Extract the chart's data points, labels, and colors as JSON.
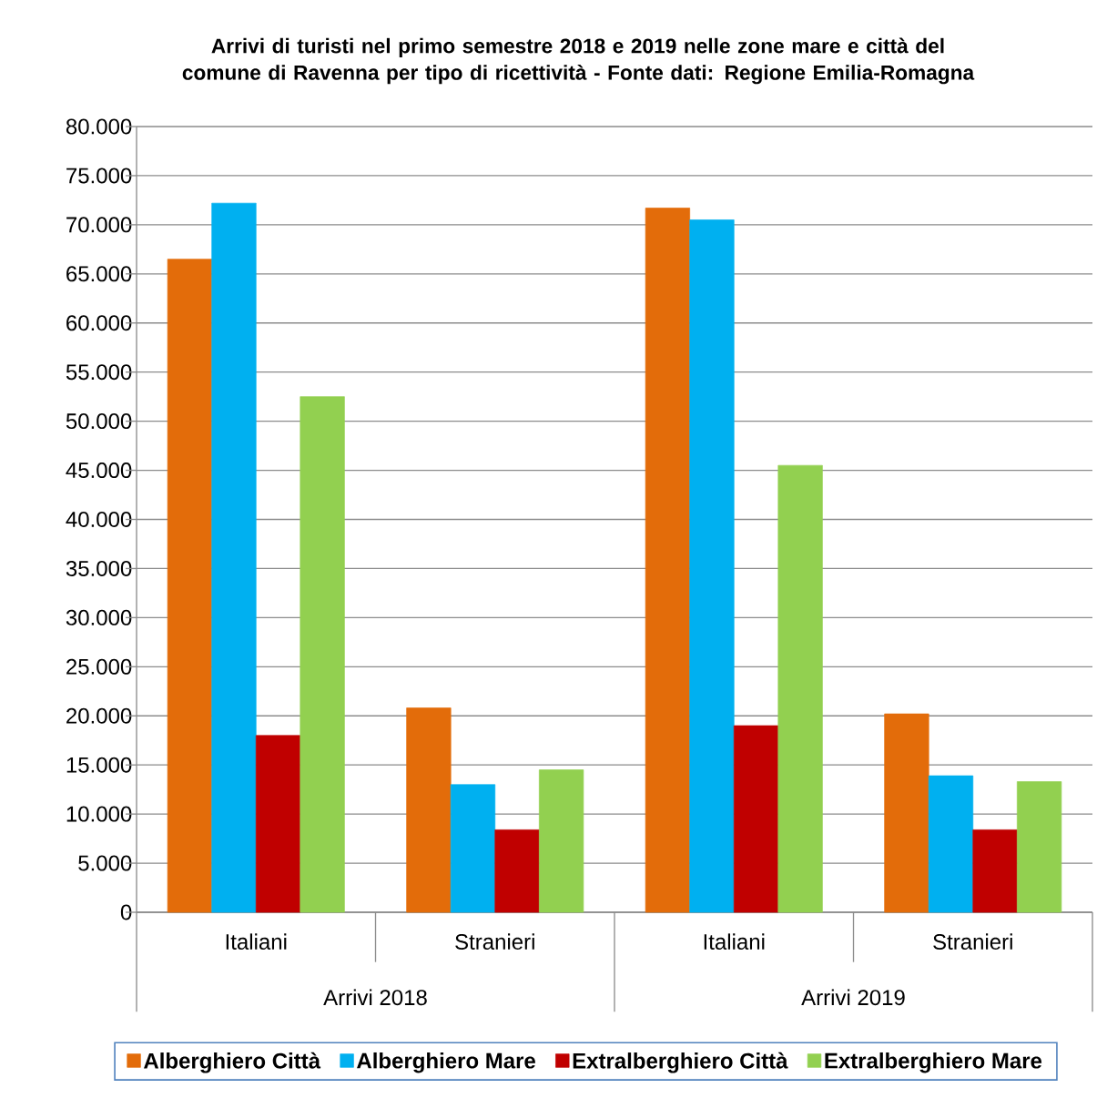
{
  "chart_data": {
    "type": "bar",
    "title": "Arrivi  di turisti nel primo semestre 2018  e 2019  nelle zone mare e città del comune di Ravenna per tipo di ricettività - Fonte dati: Regione Emilia-Romagna",
    "categories": [
      "Italiani",
      "Stranieri",
      "Italiani",
      "Stranieri"
    ],
    "annotations": [
      "Arrivi 2018",
      "Arrivi 2019"
    ],
    "series": [
      {
        "name": "Alberghiero Città",
        "color": "#e36c0a",
        "values": [
          66500,
          20800,
          71700,
          20200
        ]
      },
      {
        "name": "Alberghiero Mare",
        "color": "#00b0f0",
        "values": [
          72200,
          13000,
          70500,
          13900
        ]
      },
      {
        "name": "Extralberghiero Città",
        "color": "#c00000",
        "values": [
          18000,
          8400,
          19000,
          8400
        ]
      },
      {
        "name": "Extralberghiero Mare",
        "color": "#92d050",
        "values": [
          52500,
          14500,
          45500,
          13300
        ]
      }
    ],
    "ylim": [
      0,
      80000
    ],
    "yticks": [
      0,
      {
        "value": 5000,
        "label": "5.000"
      },
      {
        "value": 10000,
        "label": "10.000"
      },
      {
        "value": 15000,
        "label": "15.000"
      },
      {
        "value": 20000,
        "label": "20.000"
      },
      {
        "value": 25000,
        "label": "25.000"
      },
      {
        "value": 30000,
        "label": "30.000"
      },
      {
        "value": 35000,
        "label": "35.000"
      },
      {
        "value": 40000,
        "label": "40.000"
      },
      {
        "value": 45000,
        "label": "45.000"
      },
      {
        "value": 50000,
        "label": "50.000"
      },
      {
        "value": 55000,
        "label": "55.000"
      },
      {
        "value": 60000,
        "label": "60.000"
      },
      {
        "value": 65000,
        "label": "65.000"
      },
      {
        "value": 70000,
        "label": "70.000"
      },
      {
        "value": 75000,
        "label": "75.000"
      },
      {
        "value": 80000,
        "label": "80.000"
      }
    ],
    "grid": "y",
    "legend": "bottom"
  }
}
